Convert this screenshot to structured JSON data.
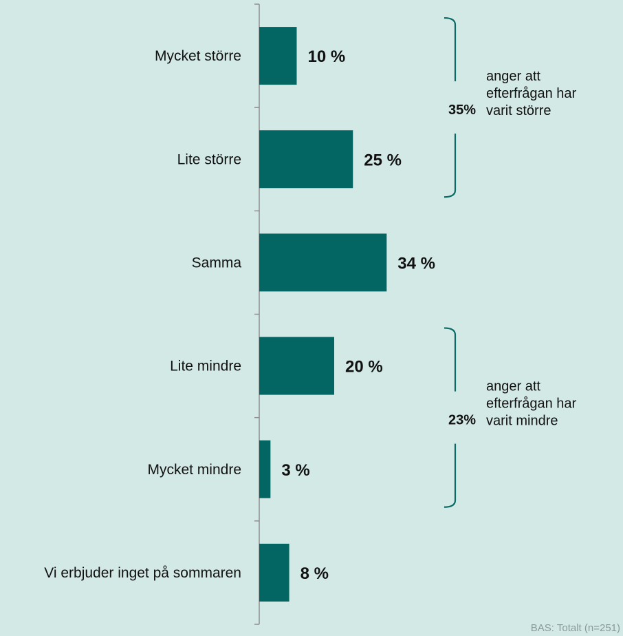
{
  "chart_data": {
    "type": "bar",
    "orientation": "horizontal",
    "categories": [
      "Mycket större",
      "Lite större",
      "Samma",
      "Lite mindre",
      "Mycket mindre",
      "Vi erbjuder inget på sommaren"
    ],
    "values": [
      10,
      25,
      34,
      20,
      3,
      8
    ],
    "value_labels": [
      "10 %",
      "25 %",
      "34 %",
      "20 %",
      "3 %",
      "8 %"
    ],
    "value_max": 100,
    "bar_color": "#046663",
    "groups": [
      {
        "percent": "35%",
        "text_lines": [
          "anger att",
          "efterfrågan har",
          "varit större"
        ],
        "category_indices": [
          0,
          1
        ]
      },
      {
        "percent": "23%",
        "text_lines": [
          "anger att",
          "efterfrågan har",
          "varit mindre"
        ],
        "category_indices": [
          3,
          4
        ]
      }
    ],
    "footnote": "BAS: Totalt (n=251)"
  },
  "colors": {
    "background": "#d3e9e6",
    "bar": "#046663",
    "bracket": "#0a6a66",
    "axis": "#8e8e8e",
    "text": "#111111",
    "footnote": "#8a9a98"
  }
}
